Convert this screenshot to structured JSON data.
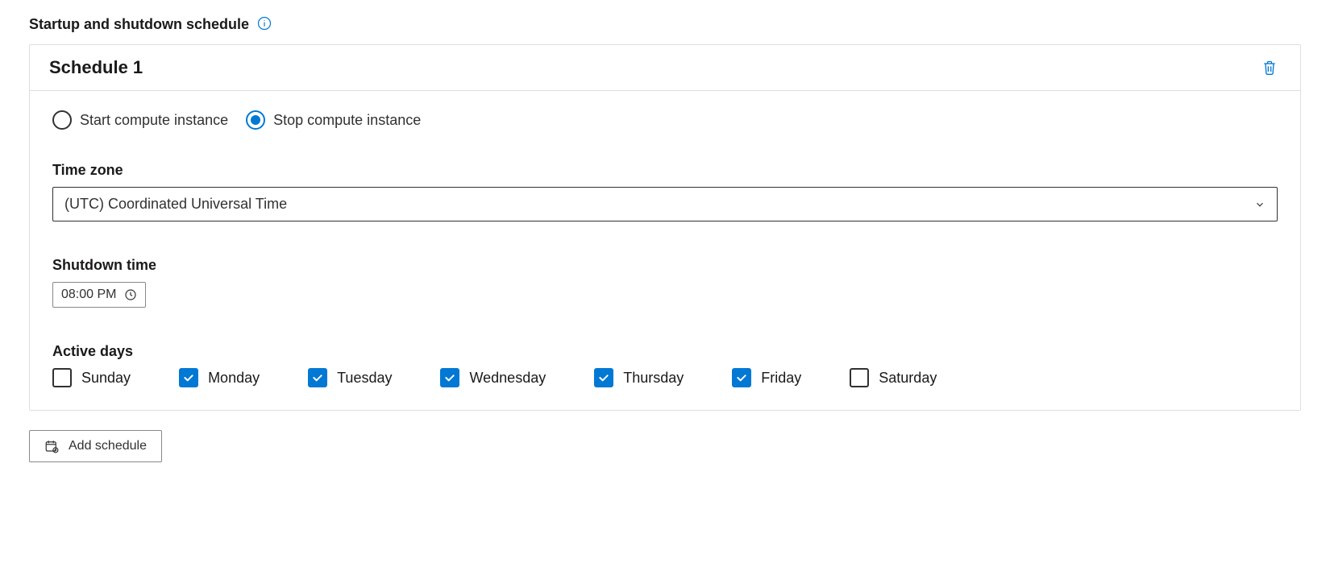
{
  "colors": {
    "accent": "#0078d4",
    "text": "#323130",
    "border": "#e1dfdd",
    "input_border": "#8a8886",
    "background": "#ffffff"
  },
  "section": {
    "title": "Startup and shutdown schedule"
  },
  "schedule": {
    "title": "Schedule 1",
    "action_options": {
      "start": {
        "label": "Start compute instance",
        "selected": false
      },
      "stop": {
        "label": "Stop compute instance",
        "selected": true
      }
    },
    "timezone": {
      "label": "Time zone",
      "value": "(UTC) Coordinated Universal Time"
    },
    "shutdown_time": {
      "label": "Shutdown time",
      "value": "08:00 PM"
    },
    "active_days": {
      "label": "Active days",
      "days": [
        {
          "name": "Sunday",
          "checked": false
        },
        {
          "name": "Monday",
          "checked": true
        },
        {
          "name": "Tuesday",
          "checked": true
        },
        {
          "name": "Wednesday",
          "checked": true
        },
        {
          "name": "Thursday",
          "checked": true
        },
        {
          "name": "Friday",
          "checked": true
        },
        {
          "name": "Saturday",
          "checked": false
        }
      ]
    }
  },
  "add_button": {
    "label": "Add schedule"
  }
}
